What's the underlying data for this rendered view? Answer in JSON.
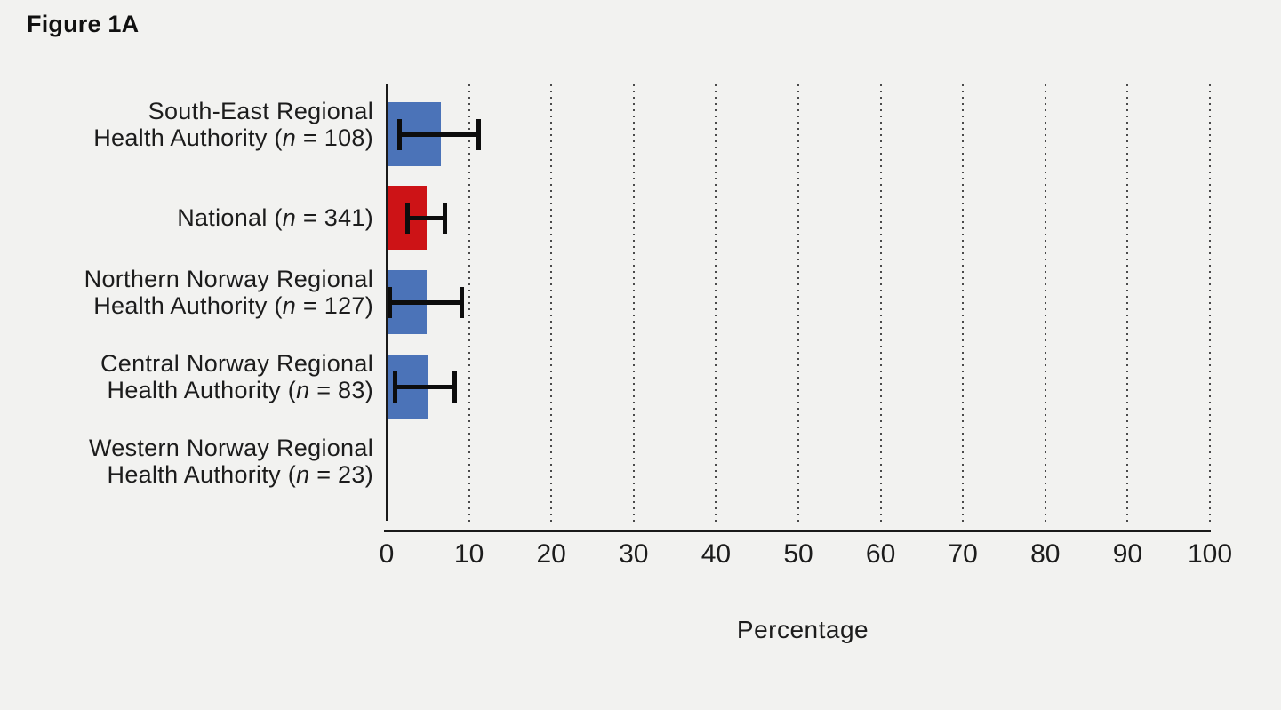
{
  "title": "Figure 1A",
  "colors": {
    "background": "#f2f2f0",
    "bar_default": "#4b73b8",
    "bar_highlight": "#cd1316",
    "error_bar": "#0d0d0d",
    "axis": "#1a1a1a"
  },
  "chart_data": {
    "type": "bar",
    "orientation": "horizontal",
    "title": "Figure 1A",
    "xlabel": "Percentage",
    "xlim": [
      0,
      100
    ],
    "xticks": [
      0,
      10,
      20,
      30,
      40,
      50,
      60,
      70,
      80,
      90,
      100
    ],
    "grid": "vertical-dotted",
    "legend": "none",
    "error_bars": "95% confidence intervals",
    "categories": [
      {
        "label": "South-East Regional Health Authority (n = 108)",
        "label_lines": [
          "South-East Regional",
          "Health Authority"
        ],
        "n": "108",
        "value": 6.5,
        "ci_low": 1.6,
        "ci_high": 11.2,
        "color": "#4b73b8"
      },
      {
        "label": "National (n = 341)",
        "label_lines": [
          "National"
        ],
        "n": "341",
        "value": 4.8,
        "ci_low": 2.5,
        "ci_high": 7.1,
        "color": "#cd1316"
      },
      {
        "label": "Northern Norway Regional Health Authority (n = 127)",
        "label_lines": [
          "Northern Norway Regional",
          "Health Authority"
        ],
        "n": "127",
        "value": 4.8,
        "ci_low": 0.4,
        "ci_high": 9.1,
        "color": "#4b73b8"
      },
      {
        "label": "Central Norway Regional Health Authority (n = 83)",
        "label_lines": [
          "Central Norway Regional",
          "Health Authority"
        ],
        "n": "83",
        "value": 4.9,
        "ci_low": 1.0,
        "ci_high": 8.3,
        "color": "#4b73b8"
      },
      {
        "label": "Western Norway Regional Health Authority (n = 23)",
        "label_lines": [
          "Western Norway Regional",
          "Health Authority"
        ],
        "n": "23",
        "value": 0,
        "ci_low": null,
        "ci_high": null,
        "color": "#4b73b8"
      }
    ]
  }
}
